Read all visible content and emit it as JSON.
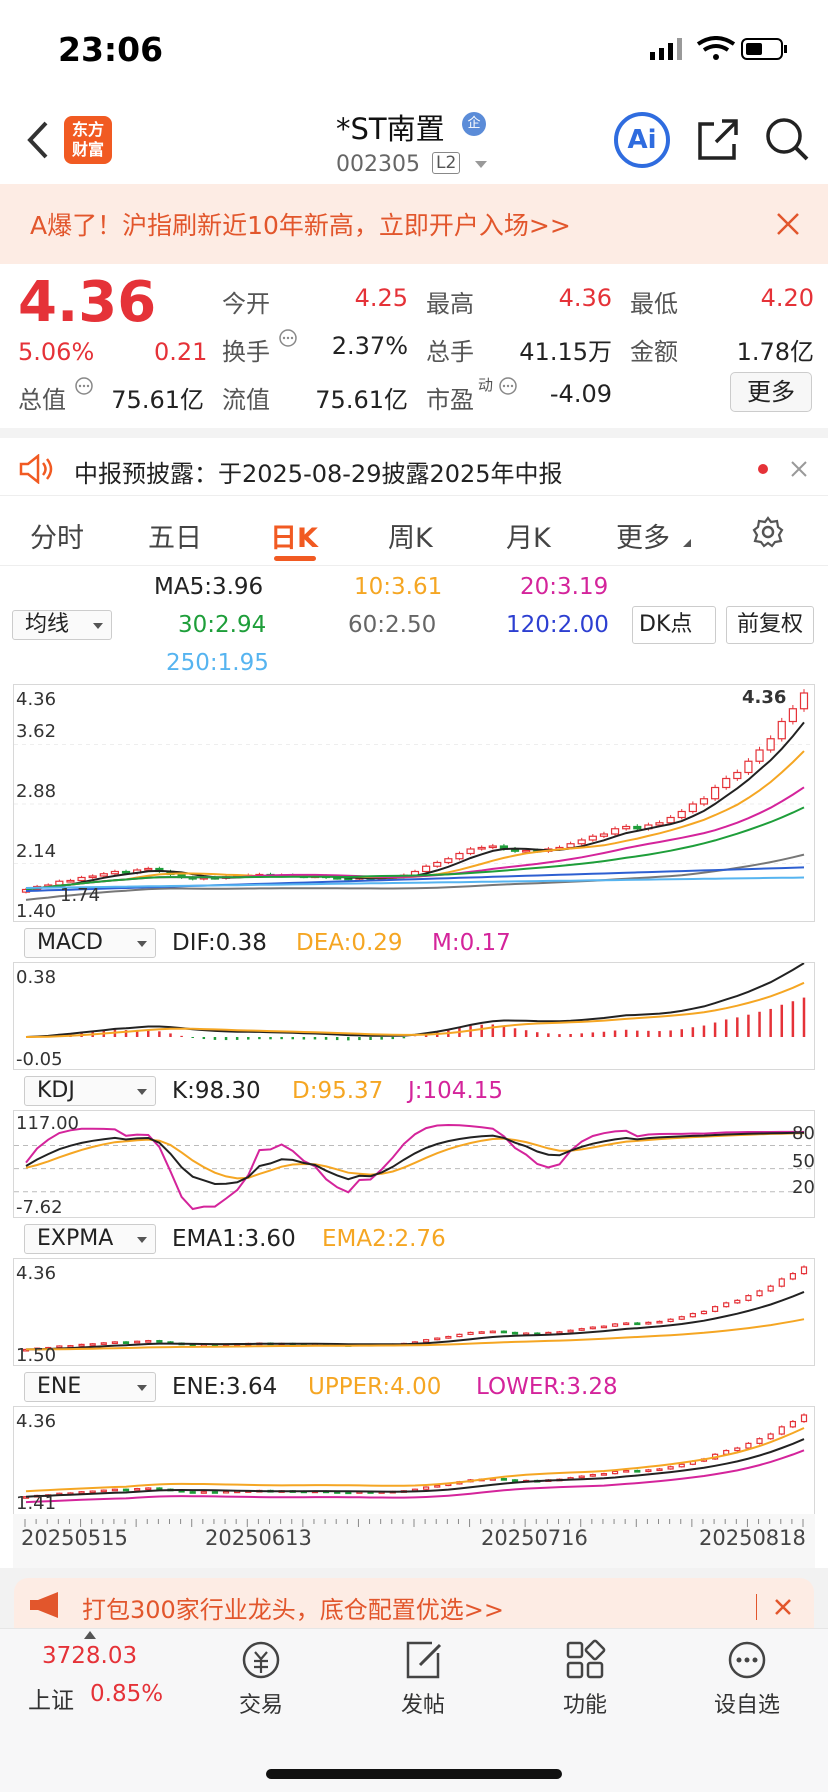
{
  "status": {
    "time": "23:06"
  },
  "nav": {
    "logo": "东方\n财富",
    "title": "*ST南置",
    "badge": "企",
    "code": "002305",
    "level": "L2",
    "ai": "Ai"
  },
  "banner": {
    "text": "A爆了！沪指刷新近10年新高，立即开户入场>>"
  },
  "quote": {
    "price": "4.36",
    "change_pct": "5.06%",
    "change": "0.21",
    "open_label": "今开",
    "open": "4.25",
    "high_label": "最高",
    "high": "4.36",
    "low_label": "最低",
    "low": "4.20",
    "turnover_label": "换手",
    "turnover": "2.37%",
    "volume_label": "总手",
    "volume": "41.15万",
    "amount_label": "金额",
    "amount": "1.78亿",
    "mktcap_label": "总值",
    "mktcap": "75.61亿",
    "float_label": "流值",
    "float": "75.61亿",
    "pe_label": "市盈",
    "pe_sup": "动",
    "pe": "-4.09",
    "more": "更多"
  },
  "notice": {
    "text": "中报预披露：于2025-08-29披露2025年中报"
  },
  "tabs": [
    "分时",
    "五日",
    "日K",
    "周K",
    "月K",
    "更多"
  ],
  "active_tab": 2,
  "ma": {
    "selector": "均线",
    "ma5": "MA5:3.96",
    "ma10": "10:3.61",
    "ma20": "20:3.19",
    "ma30": "30:2.94",
    "ma60": "60:2.50",
    "ma120": "120:2.00",
    "ma250": "250:1.95",
    "dk": "DK点",
    "fq": "前复权"
  },
  "colors": {
    "up": "#e53238",
    "down": "#1e9e3a",
    "ma5": "#222222",
    "ma10": "#f5a623",
    "ma20": "#d4249b",
    "ma30": "#1e9e3a",
    "ma60": "#777777",
    "ma120": "#2d5fd1",
    "ma250": "#56b4f0"
  },
  "main_chart": {
    "max": "4.36",
    "l1": "3.62",
    "l2": "2.88",
    "l3": "2.14",
    "min": "1.40",
    "low_mark": "1.74",
    "high_mark": "4.36"
  },
  "macd": {
    "selector": "MACD",
    "dif": "DIF:0.38",
    "dea": "DEA:0.29",
    "m": "M:0.17",
    "top": "0.38",
    "bottom": "-0.05"
  },
  "kdj": {
    "selector": "KDJ",
    "k": "K:98.30",
    "d": "D:95.37",
    "j": "J:104.15",
    "top": "117.00",
    "bottom": "-7.62",
    "r80": "80",
    "r50": "50",
    "r20": "20"
  },
  "expma": {
    "selector": "EXPMA",
    "ema1": "EMA1:3.60",
    "ema2": "EMA2:2.76",
    "top": "4.36",
    "bottom": "1.50"
  },
  "ene": {
    "selector": "ENE",
    "ene": "ENE:3.64",
    "upper": "UPPER:4.00",
    "lower": "LOWER:3.28",
    "top": "4.36",
    "bottom": "1.41"
  },
  "dates": [
    "20250515",
    "20250613",
    "20250716",
    "20250818"
  ],
  "chart_data": {
    "type": "candlestick",
    "closes": [
      1.74,
      1.78,
      1.8,
      1.85,
      1.86,
      1.9,
      1.92,
      1.95,
      1.98,
      1.96,
      2.0,
      2.02,
      1.98,
      1.94,
      1.9,
      1.88,
      1.9,
      1.89,
      1.91,
      1.92,
      1.93,
      1.94,
      1.92,
      1.93,
      1.92,
      1.91,
      1.92,
      1.9,
      1.89,
      1.88,
      1.9,
      1.89,
      1.9,
      1.91,
      1.93,
      1.98,
      2.05,
      2.1,
      2.15,
      2.22,
      2.28,
      2.3,
      2.32,
      2.28,
      2.25,
      2.26,
      2.25,
      2.28,
      2.3,
      2.35,
      2.4,
      2.45,
      2.48,
      2.55,
      2.58,
      2.55,
      2.6,
      2.63,
      2.7,
      2.78,
      2.88,
      2.95,
      3.1,
      3.22,
      3.3,
      3.45,
      3.6,
      3.75,
      3.98,
      4.15,
      4.36
    ],
    "ylim": [
      1.4,
      4.36
    ]
  },
  "bottom": {
    "index_val": "3728.03",
    "index_name": "上证",
    "index_pct": "0.85%",
    "trade": "交易",
    "post": "发帖",
    "func": "功能",
    "watch": "设自选",
    "ad": "打包300家行业龙头，底仓配置优选>>"
  }
}
